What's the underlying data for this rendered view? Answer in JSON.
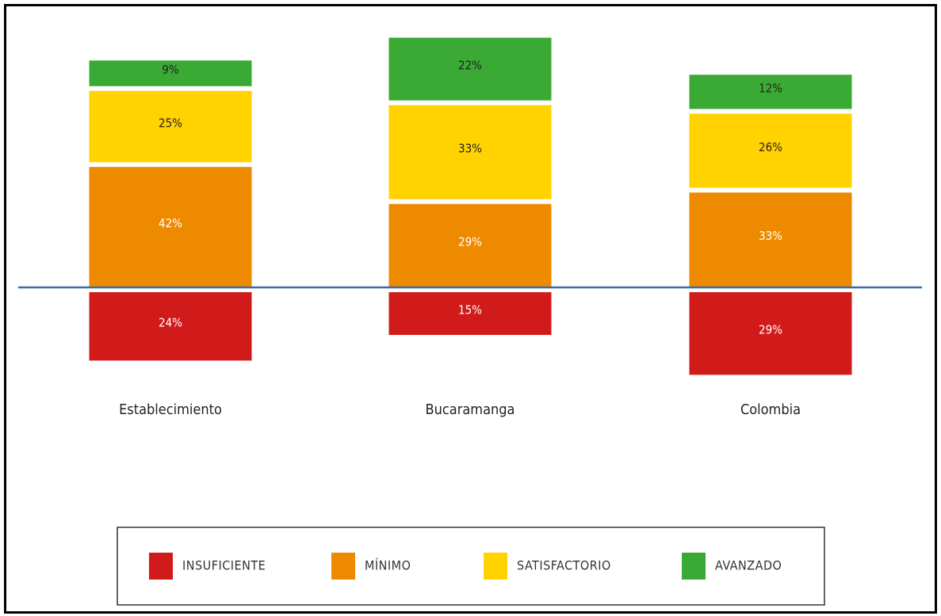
{
  "chart_data": {
    "type": "bar",
    "stacked": true,
    "diverging": true,
    "baseline_series": "INSUFICIENTE",
    "categories": [
      "Establecimiento",
      "Bucaramanga",
      "Colombia"
    ],
    "series": [
      {
        "name": "INSUFICIENTE",
        "color": "#d11b1b",
        "label_color": "#ffffff",
        "values": [
          24,
          15,
          29
        ],
        "labels": [
          "24%",
          "15%",
          "29%"
        ]
      },
      {
        "name": "MÍNIMO",
        "color": "#ee8a00",
        "label_color": "#ffffff",
        "values": [
          42,
          29,
          33
        ],
        "labels": [
          "42%",
          "29%",
          "33%"
        ]
      },
      {
        "name": "SATISFACTORIO",
        "color": "#ffd200",
        "label_color": "#222222",
        "values": [
          25,
          33,
          26
        ],
        "labels": [
          "25%",
          "33%",
          "26%"
        ]
      },
      {
        "name": "AVANZADO",
        "color": "#3aaa35",
        "label_color": "#222222",
        "values": [
          9,
          22,
          12
        ],
        "labels": [
          "9%",
          "22%",
          "12%"
        ]
      }
    ],
    "unit": "%",
    "legend_position": "bottom",
    "baseline_color": "#3b6aa6",
    "grid": false
  }
}
